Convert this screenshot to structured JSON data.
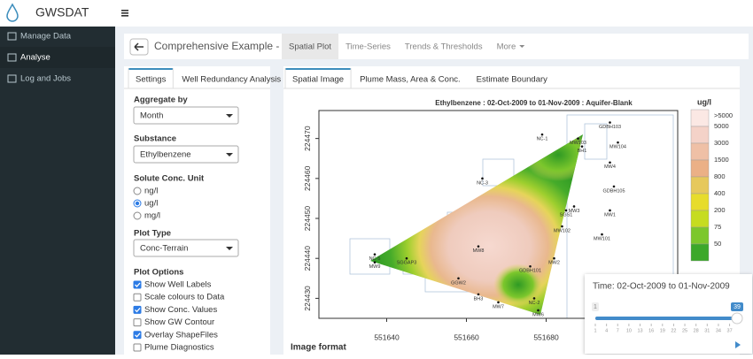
{
  "app": {
    "title": "GWSDAT"
  },
  "sidebar": {
    "items": [
      "Manage Data",
      "Analyse",
      "Log and Jobs"
    ],
    "active": 1
  },
  "header": {
    "title": "Comprehensive Example - Blank",
    "tabs": [
      "Spatial Plot",
      "Time-Series",
      "Trends & Thresholds",
      "More"
    ],
    "active": 0
  },
  "settings": {
    "tabs": [
      "Settings",
      "Well Redundancy Analysis"
    ],
    "active": 0,
    "aggregate": {
      "label": "Aggregate by",
      "value": "Month"
    },
    "substance": {
      "label": "Substance",
      "value": "Ethylbenzene"
    },
    "unit": {
      "label": "Solute Conc. Unit",
      "options": [
        "ng/l",
        "ug/l",
        "mg/l"
      ],
      "selected": 1
    },
    "plot_type": {
      "label": "Plot Type",
      "value": "Conc-Terrain"
    },
    "plot_options": {
      "label": "Plot Options",
      "items": [
        {
          "label": "Show Well Labels",
          "checked": true
        },
        {
          "label": "Scale colours to Data",
          "checked": false
        },
        {
          "label": "Show Conc. Values",
          "checked": true
        },
        {
          "label": "Show GW Contour",
          "checked": false
        },
        {
          "label": "Overlay ShapeFiles",
          "checked": true
        },
        {
          "label": "Plume Diagnostics",
          "checked": false
        }
      ]
    }
  },
  "plot_tabs": {
    "items": [
      "Spatial Image",
      "Plume Mass, Area & Conc.",
      "Estimate Boundary"
    ],
    "active": 0
  },
  "chart_data": {
    "type": "map",
    "title": "Ethylbenzene  : 02-Oct-2009 to 01-Nov-2009 : Aquifer-Blank",
    "xlim": [
      551623,
      551713
    ],
    "ylim": [
      224425,
      224477
    ],
    "xticks": [
      551640,
      551660,
      551680
    ],
    "yticks": [
      224430,
      224440,
      224450,
      224460,
      224470
    ],
    "wells": [
      {
        "name": "GDBH103",
        "x": 551696,
        "y": 224474
      },
      {
        "name": "MW104",
        "x": 551698,
        "y": 224469
      },
      {
        "name": "MW103",
        "x": 551688,
        "y": 224470
      },
      {
        "name": "BH1",
        "x": 551689,
        "y": 224468
      },
      {
        "name": "MW4",
        "x": 551696,
        "y": 224464
      },
      {
        "name": "NC-1",
        "x": 551679,
        "y": 224471
      },
      {
        "name": "GDBH105",
        "x": 551697,
        "y": 224458
      },
      {
        "name": "MW3",
        "x": 551687,
        "y": 224453
      },
      {
        "name": "SGS1",
        "x": 551685,
        "y": 224452
      },
      {
        "name": "MW1",
        "x": 551696,
        "y": 224452
      },
      {
        "name": "MW102",
        "x": 551684,
        "y": 224448
      },
      {
        "name": "MW101",
        "x": 551694,
        "y": 224446
      },
      {
        "name": "NC-3",
        "x": 551664,
        "y": 224460
      },
      {
        "name": "MW8",
        "x": 551663,
        "y": 224443
      },
      {
        "name": "MW2",
        "x": 551682,
        "y": 224440
      },
      {
        "name": "GDBH101",
        "x": 551676,
        "y": 224438
      },
      {
        "name": "NC-5",
        "x": 551637,
        "y": 224441
      },
      {
        "name": "MW9",
        "x": 551637,
        "y": 224439
      },
      {
        "name": "SGGAP3",
        "x": 551645,
        "y": 224440
      },
      {
        "name": "GGW2",
        "x": 551658,
        "y": 224435
      },
      {
        "name": "BH3",
        "x": 551663,
        "y": 224431
      },
      {
        "name": "MW7",
        "x": 551668,
        "y": 224429
      },
      {
        "name": "NC-2",
        "x": 551677,
        "y": 224430
      },
      {
        "name": "MW6",
        "x": 551678,
        "y": 224427
      }
    ],
    "legend": {
      "title": "ug/l",
      "labels": [
        ">5000",
        5000,
        3000,
        1500,
        800,
        400,
        200,
        75,
        50
      ],
      "colors": [
        "#fbe8e4",
        "#f4d2c8",
        "#efc0a6",
        "#ebb086",
        "#e6c85c",
        "#e7dc2c",
        "#c6dc20",
        "#7cc72c",
        "#3ca82a"
      ]
    }
  },
  "image_format": "Image format",
  "time_slider": {
    "label": "Time: 02-Oct-2009 to 01-Nov-2009",
    "min": 1,
    "max": 39,
    "value": 39,
    "ticks": [
      1,
      4,
      7,
      10,
      13,
      16,
      19,
      22,
      25,
      28,
      31,
      34,
      37
    ]
  }
}
